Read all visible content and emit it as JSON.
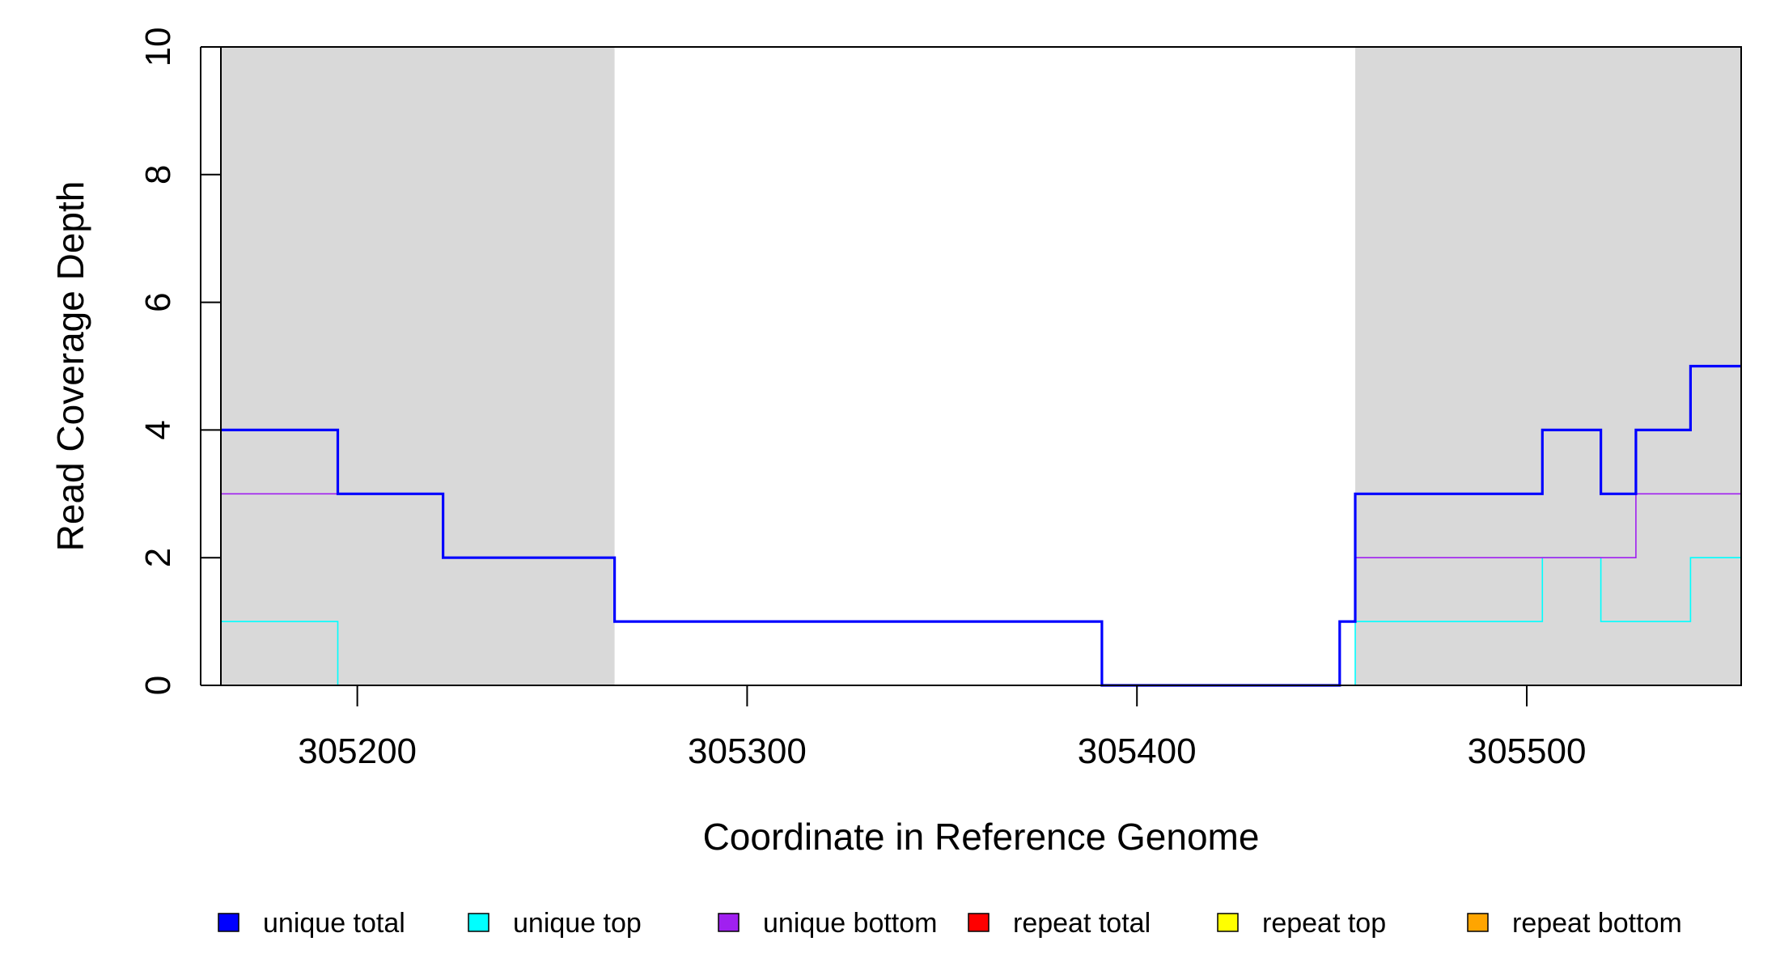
{
  "chart_data": {
    "type": "line",
    "xlabel": "Coordinate in Reference Genome",
    "ylabel": "Read Coverage Depth",
    "xlim": [
      305165,
      305555
    ],
    "ylim": [
      0,
      10
    ],
    "x_ticks": [
      "305200",
      "305300",
      "305400",
      "305500"
    ],
    "y_ticks": [
      "0",
      "2",
      "4",
      "6",
      "8",
      "10"
    ],
    "grid": false,
    "shaded_regions": [
      {
        "x_start": 305165,
        "x_end": 305266,
        "color": "#d9d9d9"
      },
      {
        "x_start": 305456,
        "x_end": 305555,
        "color": "#d9d9d9"
      }
    ],
    "series": [
      {
        "name": "unique total",
        "color": "#0000ff",
        "step_x": [
          305165,
          305195,
          305222,
          305266,
          305391,
          305452,
          305456,
          305504,
          305519,
          305528,
          305542,
          305555
        ],
        "step_y": [
          4,
          3,
          2,
          1,
          0,
          1,
          3,
          4,
          3,
          4,
          5
        ]
      },
      {
        "name": "unique top",
        "color": "#00ffff",
        "step_x": [
          305165,
          305195,
          305456,
          305504,
          305519,
          305542,
          305555
        ],
        "step_y": [
          1,
          0,
          1,
          2,
          1,
          2
        ]
      },
      {
        "name": "unique bottom",
        "color": "#a020f0",
        "step_x": [
          305165,
          305222,
          305266,
          305391,
          305452,
          305456,
          305528,
          305555
        ],
        "step_y": [
          3,
          2,
          1,
          0,
          1,
          2,
          3
        ]
      },
      {
        "name": "repeat total",
        "color": "#ff0000",
        "step_x": [
          305165,
          305555
        ],
        "step_y": [
          0
        ]
      },
      {
        "name": "repeat top",
        "color": "#ffff00",
        "step_x": [
          305165,
          305555
        ],
        "step_y": [
          0
        ]
      },
      {
        "name": "repeat bottom",
        "color": "#ffa500",
        "step_x": [
          305165,
          305555
        ],
        "step_y": [
          0
        ]
      }
    ],
    "legend_position": "bottom"
  }
}
